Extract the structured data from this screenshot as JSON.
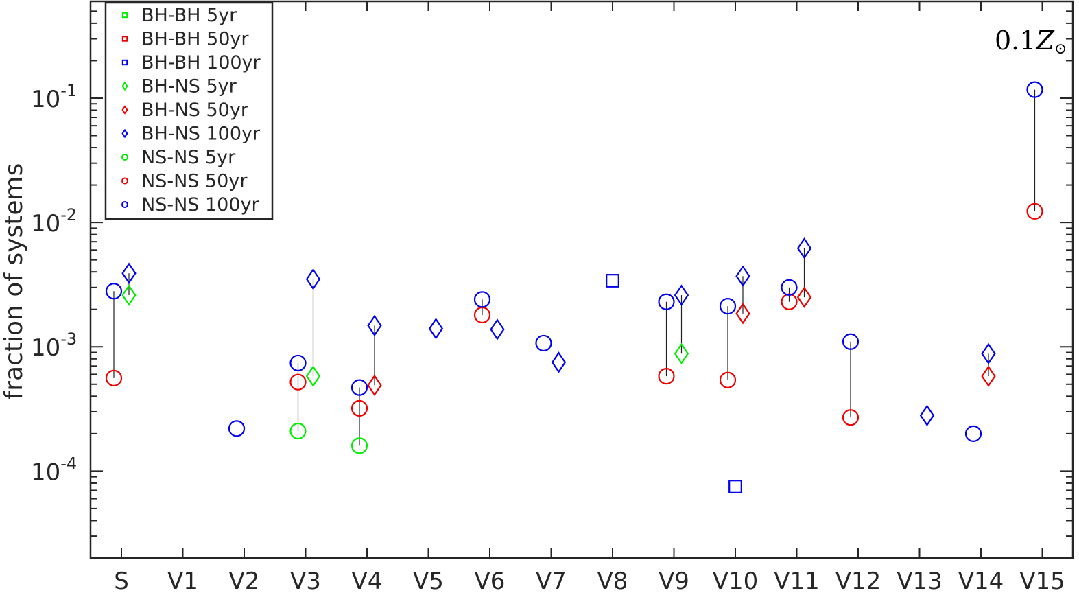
{
  "chart_data": {
    "type": "scatter",
    "yscale": "log",
    "ylim": [
      2e-05,
      0.6
    ],
    "ylabel": "fraction of systems",
    "yticks": [
      {
        "value": 0.1,
        "base": "10",
        "exp": "-1"
      },
      {
        "value": 0.01,
        "base": "10",
        "exp": "-2"
      },
      {
        "value": 0.001,
        "base": "10",
        "exp": "-3"
      },
      {
        "value": 0.0001,
        "base": "10",
        "exp": "-4"
      }
    ],
    "categories": [
      "S",
      "V1",
      "V2",
      "V3",
      "V4",
      "V5",
      "V6",
      "V7",
      "V8",
      "V9",
      "V10",
      "V11",
      "V12",
      "V13",
      "V14",
      "V15"
    ],
    "annotation": {
      "text": "0.1",
      "symbol": "Z",
      "sub": "⊙"
    },
    "legend_position": "top-left",
    "colors": {
      "5yr": "#00ee00",
      "50yr": "#ee0000",
      "100yr": "#0000ee"
    },
    "series": [
      {
        "name": "BH-BH 5yr",
        "marker": "square",
        "color": "#00ee00",
        "points": []
      },
      {
        "name": "BH-BH 50yr",
        "marker": "square",
        "color": "#ee0000",
        "points": []
      },
      {
        "name": "BH-BH 100yr",
        "marker": "square",
        "color": "#0000ee",
        "points": [
          {
            "cat": "V8",
            "y": 0.0034
          },
          {
            "cat": "V10",
            "y": 7.5e-05
          }
        ]
      },
      {
        "name": "BH-NS 5yr",
        "marker": "diamond",
        "color": "#00ee00",
        "points": [
          {
            "cat": "S",
            "y": 0.0026
          },
          {
            "cat": "V3",
            "y": 0.00058
          },
          {
            "cat": "V9",
            "y": 0.00088
          }
        ]
      },
      {
        "name": "BH-NS 50yr",
        "marker": "diamond",
        "color": "#ee0000",
        "points": [
          {
            "cat": "V4",
            "y": 0.00049
          },
          {
            "cat": "V10",
            "y": 0.00185
          },
          {
            "cat": "V11",
            "y": 0.0025
          },
          {
            "cat": "V14",
            "y": 0.00058
          }
        ]
      },
      {
        "name": "BH-NS 100yr",
        "marker": "diamond",
        "color": "#0000ee",
        "points": [
          {
            "cat": "S",
            "y": 0.0039
          },
          {
            "cat": "V3",
            "y": 0.0035
          },
          {
            "cat": "V4",
            "y": 0.00148
          },
          {
            "cat": "V5",
            "y": 0.0014
          },
          {
            "cat": "V6",
            "y": 0.00138
          },
          {
            "cat": "V7",
            "y": 0.00075
          },
          {
            "cat": "V9",
            "y": 0.0026
          },
          {
            "cat": "V10",
            "y": 0.0037
          },
          {
            "cat": "V11",
            "y": 0.0062
          },
          {
            "cat": "V13",
            "y": 0.00028
          },
          {
            "cat": "V14",
            "y": 0.00088
          }
        ]
      },
      {
        "name": "NS-NS 5yr",
        "marker": "circle",
        "color": "#00ee00",
        "points": [
          {
            "cat": "V3",
            "y": 0.00021
          },
          {
            "cat": "V4",
            "y": 0.00016
          }
        ]
      },
      {
        "name": "NS-NS 50yr",
        "marker": "circle",
        "color": "#ee0000",
        "points": [
          {
            "cat": "S",
            "y": 0.00056
          },
          {
            "cat": "V3",
            "y": 0.00052
          },
          {
            "cat": "V4",
            "y": 0.00032
          },
          {
            "cat": "V6",
            "y": 0.0018
          },
          {
            "cat": "V9",
            "y": 0.00058
          },
          {
            "cat": "V10",
            "y": 0.00054
          },
          {
            "cat": "V11",
            "y": 0.0023
          },
          {
            "cat": "V12",
            "y": 0.00027
          },
          {
            "cat": "V15",
            "y": 0.0123
          }
        ]
      },
      {
        "name": "NS-NS 100yr",
        "marker": "circle",
        "color": "#0000ee",
        "points": [
          {
            "cat": "S",
            "y": 0.0028
          },
          {
            "cat": "V2",
            "y": 0.00022
          },
          {
            "cat": "V3",
            "y": 0.00074
          },
          {
            "cat": "V4",
            "y": 0.00047
          },
          {
            "cat": "V6",
            "y": 0.0024
          },
          {
            "cat": "V7",
            "y": 0.00107
          },
          {
            "cat": "V9",
            "y": 0.0023
          },
          {
            "cat": "V10",
            "y": 0.00212
          },
          {
            "cat": "V11",
            "y": 0.003
          },
          {
            "cat": "V12",
            "y": 0.0011
          },
          {
            "cat": "V14",
            "y": 0.0002
          },
          {
            "cat": "V15",
            "y": 0.117
          }
        ]
      }
    ],
    "connectors": [
      {
        "cat": "S",
        "type": "circle",
        "y": [
          0.00056,
          0.0028
        ]
      },
      {
        "cat": "S",
        "type": "diamond",
        "y": [
          0.0026,
          0.0039
        ]
      },
      {
        "cat": "V3",
        "type": "circle",
        "y": [
          0.00021,
          0.00074
        ]
      },
      {
        "cat": "V3",
        "type": "diamond",
        "y": [
          0.00058,
          0.0035
        ]
      },
      {
        "cat": "V4",
        "type": "circle",
        "y": [
          0.00016,
          0.00047
        ]
      },
      {
        "cat": "V4",
        "type": "diamond",
        "y": [
          0.00049,
          0.00148
        ]
      },
      {
        "cat": "V6",
        "type": "circle",
        "y": [
          0.0018,
          0.0024
        ]
      },
      {
        "cat": "V9",
        "type": "circle",
        "y": [
          0.00058,
          0.0023
        ]
      },
      {
        "cat": "V9",
        "type": "diamond",
        "y": [
          0.00088,
          0.0026
        ]
      },
      {
        "cat": "V10",
        "type": "circle",
        "y": [
          0.00054,
          0.00212
        ]
      },
      {
        "cat": "V10",
        "type": "diamond",
        "y": [
          0.00185,
          0.0037
        ]
      },
      {
        "cat": "V11",
        "type": "circle",
        "y": [
          0.0023,
          0.003
        ]
      },
      {
        "cat": "V11",
        "type": "diamond",
        "y": [
          0.0025,
          0.0062
        ]
      },
      {
        "cat": "V12",
        "type": "circle",
        "y": [
          0.00027,
          0.0011
        ]
      },
      {
        "cat": "V14",
        "type": "diamond",
        "y": [
          0.00058,
          0.00088
        ]
      },
      {
        "cat": "V15",
        "type": "circle",
        "y": [
          0.0123,
          0.117
        ]
      }
    ]
  }
}
